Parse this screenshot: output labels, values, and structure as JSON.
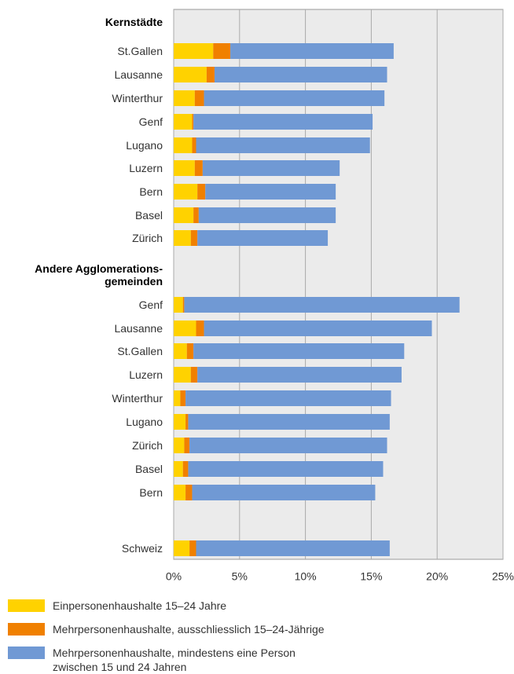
{
  "chart_data": {
    "type": "stacked-barh",
    "categories": [
      "Kernstädte",
      "St.Gallen",
      "Lausanne",
      "Winterthur",
      "Genf",
      "Lugano",
      "Luzern",
      "Bern",
      "Basel",
      "Zürich",
      "Andere Agglomerations-\ngemeinden",
      "Genf",
      "Lausanne",
      "St.Gallen",
      "Luzern",
      "Winterthur",
      "Lugano",
      "Zürich",
      "Basel",
      "Bern",
      "Schweiz"
    ],
    "series": [
      {
        "name": "Einpersonenhaushalte 15–24 Jahre",
        "color": "#ffd200",
        "values": [
          null,
          3.0,
          2.5,
          1.6,
          1.4,
          1.4,
          1.6,
          1.8,
          1.5,
          1.3,
          null,
          0.7,
          1.7,
          1.0,
          1.3,
          0.5,
          0.9,
          0.8,
          0.7,
          0.9,
          1.2
        ]
      },
      {
        "name": "Mehrpersonenhaushalte, ausschliesslich 15–24-Jährige",
        "color": "#f08000",
        "values": [
          null,
          1.3,
          0.6,
          0.7,
          0.1,
          0.3,
          0.6,
          0.6,
          0.4,
          0.5,
          null,
          0.1,
          0.6,
          0.5,
          0.5,
          0.4,
          0.2,
          0.4,
          0.4,
          0.5,
          0.5
        ]
      },
      {
        "name": "Mehrpersonenhaushalte, mindestens eine Person\nzwischen 15 und 24 Jahren",
        "color": "#7099d4",
        "values": [
          null,
          12.4,
          13.1,
          13.7,
          13.6,
          13.2,
          10.4,
          9.9,
          10.4,
          9.9,
          null,
          20.9,
          17.3,
          16.0,
          15.5,
          15.6,
          15.3,
          15.0,
          14.8,
          13.9,
          14.7
        ]
      }
    ],
    "xlim": [
      0,
      25
    ],
    "xticks": [
      {
        "value": 0,
        "label": "0%"
      },
      {
        "value": 5,
        "label": "5%"
      },
      {
        "value": 10,
        "label": "10%"
      },
      {
        "value": 15,
        "label": "15%"
      },
      {
        "value": 20,
        "label": "20%"
      },
      {
        "value": 25,
        "label": "25%"
      }
    ],
    "grid": true
  }
}
